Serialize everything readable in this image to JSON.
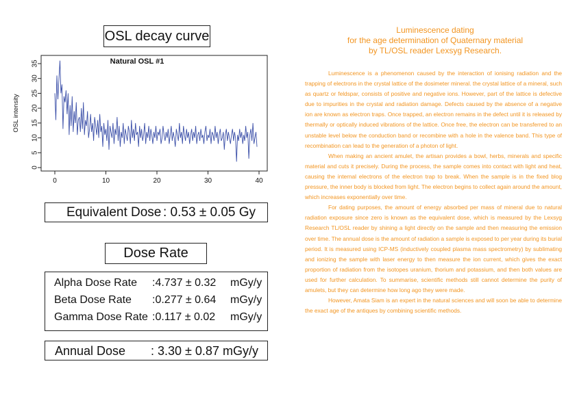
{
  "osl_title": "OSL decay curve",
  "equivalent_dose": {
    "label": "Equivalent Dose",
    "value": ": 0.53 ± 0.05 Gy"
  },
  "dose_rate_title": "Dose Rate",
  "dose_rates": [
    {
      "name": "Alpha Dose Rate",
      "value": ":4.737 ± 0.32",
      "unit": "mGy/y"
    },
    {
      "name": "Beta Dose Rate",
      "value": ":0.277 ± 0.64",
      "unit": "mGy/y"
    },
    {
      "name": "Gamma Dose Rate",
      "value": ":0.117 ± 0.02",
      "unit": "mGy/y"
    }
  ],
  "annual_dose": {
    "label": "Annual Dose",
    "value": ": 3.30 ± 0.87 mGy/y"
  },
  "right_title": [
    "Luminescence dating",
    "for the age determination of Quaternary material",
    "by TL/OSL reader Lexsyg Research."
  ],
  "paragraphs": [
    "Luminescence is a phenomenon caused by the interaction of ionising radiation and the trapping of electrons in the crystal lattice of the dosimeter mineral. the crystal lattice of a mineral, such as quartz or feldspar, consists of positive and negative ions. However, part of the lattice is defective due to impurities in the crystal and radiation damage. Defects caused by the absence of a negative ion are known as electron traps. Once trapped, an electron remains in the defect until it is released by thermally or optically induced vibrations of the lattice. Once free, the electron can be transferred to an unstable level below the conduction band or recombine with a hole in the valence band. This type of recombination can lead to the generation of a photon of light.",
    "When making an ancient amulet, the artisan provides a bowl, herbs, minerals and specific material and cuts it precisely. During the process, the sample comes into contact with light and heat, causing the internal electrons of the electron trap to break. When the sample is in the fixed blog pressure, the inner body is blocked from light. The electron begins to collect again around the amount, which increases exponentially over time.",
    "For dating purposes, the amount of energy absorbed per mass of mineral due to natural radiation exposure since zero is known as the equivalent dose, which is measured by the Lexsyg Research TL/OSL reader by shining a light directly on the sample and then measuring the emission over time. The annual dose is the amount of radiation a sample is exposed to per year during its burial period. It is measured using ICP-MS (inductively coupled plasma mass spectrometry) by sublimating and ionizing the sample with laser energy to then measure the ion current, which gives the exact proportion of radiation from the isotopes uranium, thorium and potassium, and then both values are used for further calculation. To summarise, scientific methods still cannot determine the purity of amulets, but they can determine how long ago they were made.",
    "However, Amata Siam is an expert in the natural sciences and will soon be able to determine the exact age of the antiques by combining scientific methods."
  ],
  "chart_data": {
    "type": "line",
    "title": "Natural OSL #1",
    "xlabel": "",
    "ylabel": "OSL intensity",
    "xlim": [
      0,
      40
    ],
    "ylim": [
      0,
      35
    ],
    "xticks": [
      0,
      10,
      20,
      30,
      40
    ],
    "yticks": [
      0,
      5,
      10,
      15,
      20,
      25,
      30,
      35
    ],
    "color": "#3b4fa8",
    "x_start": 0,
    "x_step": 0.2,
    "values": [
      25,
      16,
      31,
      23,
      30,
      36,
      25,
      28,
      13,
      24,
      22,
      26,
      18,
      25,
      11,
      21,
      14,
      24,
      12,
      19,
      15,
      22,
      11,
      16,
      17,
      12,
      20,
      13,
      22,
      11,
      16,
      14,
      19,
      10,
      13,
      18,
      12,
      15,
      9,
      17,
      14,
      11,
      16,
      10,
      18,
      12,
      14,
      7,
      15,
      11,
      13,
      9,
      16,
      6,
      14,
      12,
      10,
      15,
      8,
      13,
      11,
      17,
      9,
      14,
      7,
      12,
      10,
      15,
      8,
      13,
      11,
      9,
      14,
      12,
      8,
      16,
      10,
      13,
      9,
      15,
      11,
      12,
      7,
      14,
      10,
      13,
      9,
      11,
      15,
      8,
      12,
      10,
      14,
      9,
      13,
      11,
      8,
      12,
      10,
      14,
      9,
      12,
      11,
      13,
      8,
      10,
      14,
      11,
      9,
      12,
      10,
      13,
      8,
      11,
      14,
      9,
      12,
      10,
      7,
      13,
      11,
      9,
      15,
      10,
      12,
      8,
      14,
      11,
      9,
      13,
      10,
      12,
      8,
      11,
      13,
      9,
      12,
      10,
      14,
      8,
      11,
      12,
      9,
      13,
      10,
      11,
      8,
      12,
      14,
      9,
      11,
      10,
      13,
      8,
      12,
      11,
      9,
      14,
      10,
      12,
      8,
      11,
      13,
      9,
      10,
      12,
      6,
      11,
      13,
      9,
      12,
      10,
      8,
      11,
      13,
      9,
      12,
      10,
      2,
      11,
      9,
      13,
      10,
      12,
      8,
      11,
      9,
      14,
      10,
      12,
      3,
      11,
      13,
      9,
      15,
      8,
      10,
      12,
      7
    ]
  }
}
